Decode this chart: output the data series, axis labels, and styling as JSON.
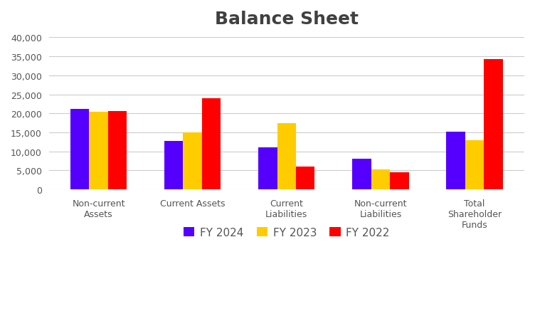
{
  "title": "Balance Sheet",
  "categories": [
    "Non-current\nAssets",
    "Current Assets",
    "Current\nLiabilities",
    "Non-current\nLiabilities",
    "Total\nShareholder\nFunds"
  ],
  "series": {
    "FY 2024": [
      21200,
      12700,
      11000,
      8100,
      15200
    ],
    "FY 2023": [
      20500,
      15000,
      17500,
      5200,
      13000
    ],
    "FY 2022": [
      20700,
      24000,
      6100,
      4500,
      34200
    ]
  },
  "colors": {
    "FY 2024": "#5500ff",
    "FY 2023": "#ffcc00",
    "FY 2022": "#ff0000"
  },
  "ylim": [
    0,
    40000
  ],
  "yticks": [
    0,
    5000,
    10000,
    15000,
    20000,
    25000,
    30000,
    35000,
    40000
  ],
  "background_color": "#ffffff",
  "plot_background_color": "#ffffff",
  "title_fontsize": 18,
  "title_fontweight": "bold",
  "title_color": "#404040",
  "grid_color": "#cccccc",
  "bar_width": 0.2,
  "legend_fontsize": 11,
  "tick_label_color": "#555555",
  "tick_label_fontsize": 9
}
